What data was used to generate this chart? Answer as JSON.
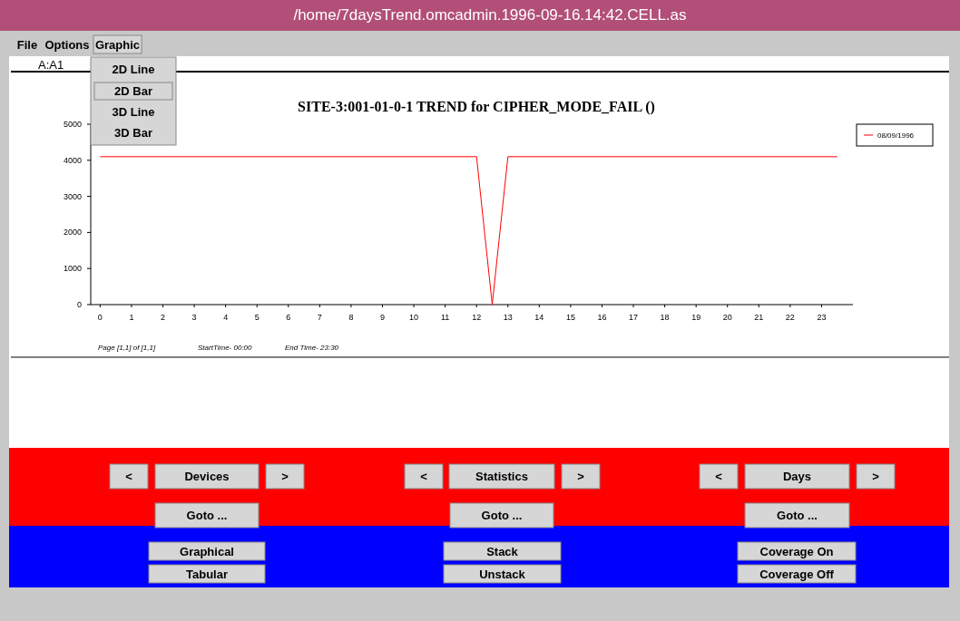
{
  "chart_data": [
    {
      "type": "line",
      "title": "SITE-3:001-01-0-1  TREND for  CIPHER_MODE_FAIL ()",
      "x": [
        0,
        12,
        12.5,
        13,
        23.5
      ],
      "series": [
        {
          "name": "08/09/1996",
          "color": "#ff0000",
          "values": [
            4100,
            4100,
            0,
            4100,
            4100
          ]
        }
      ],
      "xlim": [
        -0.3,
        24
      ],
      "xticks": [
        0,
        1,
        2,
        3,
        4,
        5,
        6,
        7,
        8,
        9,
        10,
        11,
        12,
        13,
        14,
        15,
        16,
        17,
        18,
        19,
        20,
        21,
        22,
        23
      ],
      "ylim": [
        0,
        5000
      ],
      "yticks": [
        0,
        1000,
        2000,
        3000,
        4000,
        5000
      ],
      "legend": "top right",
      "grid": false,
      "marker": "none",
      "line_style": "solid",
      "annotations": [
        "Page [1,1] of [1,1]",
        "StartTime- 00:00",
        "End Time- 23:30"
      ]
    },
    {
      "type": "other",
      "annotations": [
        "/home/7daysTrend.omcadmin.1996-09-16.14:42.CELL.as",
        "File",
        "Options",
        "Graphic",
        "A:A1",
        "2D Line",
        "2D Bar",
        "3D Line",
        "3D Bar",
        "<",
        "Devices",
        ">",
        "<",
        "Statistics",
        ">",
        "<",
        "Days",
        ">",
        "Goto ...",
        "Goto ...",
        "Goto ...",
        "Graphical",
        "Stack",
        "Coverage On",
        "Tabular",
        "Unstack",
        "Coverage Off"
      ]
    }
  ]
}
